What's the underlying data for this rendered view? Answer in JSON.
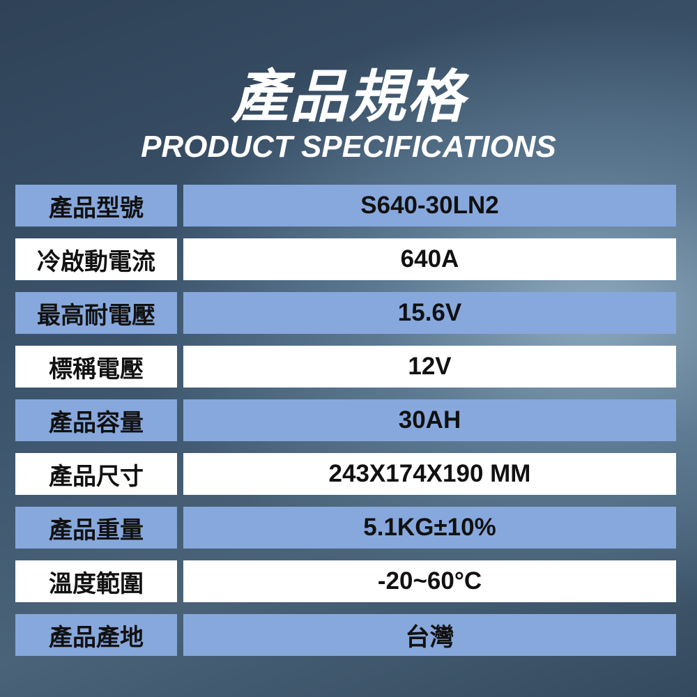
{
  "title": "產品規格",
  "subtitle": "PRODUCT SPECIFICATIONS",
  "colors": {
    "row_blue": "#87a8dc",
    "row_white": "#ffffff",
    "text": "#111111"
  },
  "specs": [
    {
      "label": "產品型號",
      "value": "S640-30LN2"
    },
    {
      "label": "冷啟動電流",
      "value": "640A"
    },
    {
      "label": "最高耐電壓",
      "value": "15.6V"
    },
    {
      "label": "標稱電壓",
      "value": "12V"
    },
    {
      "label": "產品容量",
      "value": "30AH"
    },
    {
      "label": "產品尺寸",
      "value": "243X174X190 MM"
    },
    {
      "label": "產品重量",
      "value": "5.1KG±10%"
    },
    {
      "label": "溫度範圍",
      "value": "-20~60°C"
    },
    {
      "label": "產品產地",
      "value": "台灣"
    }
  ]
}
